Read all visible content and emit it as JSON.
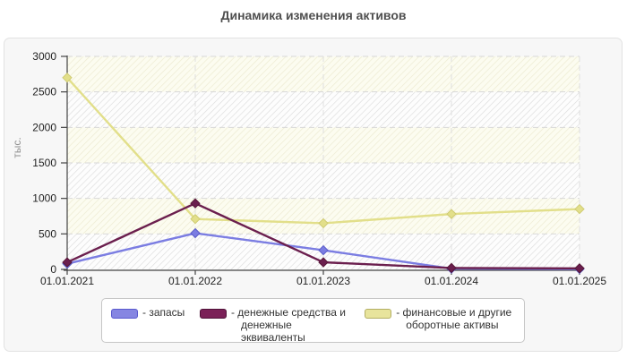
{
  "chart_data": {
    "type": "line",
    "title": "Динамика изменения активов",
    "ylabel": "тыс.",
    "xlabel": "",
    "categories": [
      "01.01.2021",
      "01.01.2022",
      "01.01.2023",
      "01.01.2024",
      "01.01.2025"
    ],
    "y_ticks": [
      0,
      500,
      1000,
      1500,
      2000,
      2500,
      3000
    ],
    "ylim": [
      0,
      3000
    ],
    "grid": "dashed horizontal and vertical gridlines",
    "legend_position": "bottom",
    "plot_background": "alternating pale-yellow and white diagonal hatch bands",
    "marker": "diamond",
    "series": [
      {
        "name": "запасы",
        "legend_label": "- запасы",
        "color": "#7b7de2",
        "marker_border": "#5a5cc8",
        "swatch_fill": "#8686e2",
        "swatch_border": "#5a5ace",
        "values": [
          80,
          510,
          270,
          10,
          5
        ]
      },
      {
        "name": "денежные средства и денежные эквиваленты",
        "legend_label": "- денежные средства и денежные эквиваленты",
        "color": "#6b1f4e",
        "marker_border": "#561637",
        "swatch_fill": "#7b2158",
        "swatch_border": "#4f1238",
        "values": [
          100,
          930,
          100,
          20,
          15
        ]
      },
      {
        "name": "финансовые и другие оборотные активы",
        "legend_label": "- финансовые и другие оборотные активы",
        "color": "#e2df8a",
        "marker_border": "#cfcb72",
        "swatch_fill": "#e8e49c",
        "swatch_border": "#b3ae63",
        "values": [
          2700,
          710,
          650,
          780,
          850
        ]
      }
    ]
  }
}
